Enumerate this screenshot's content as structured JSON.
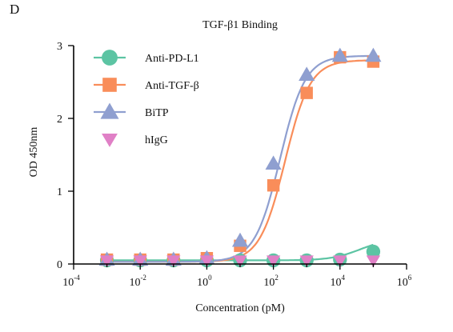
{
  "panel_label": "D",
  "chart_data": {
    "type": "scatter",
    "title": "TGF-β1 Binding",
    "xlabel": "Concentration (pM)",
    "ylabel": "OD 450nm",
    "x_scale": "log10",
    "xlim": [
      0.0001,
      1000000
    ],
    "ylim": [
      0,
      3
    ],
    "x_ticks": [
      {
        "base": "10",
        "exp": "-4"
      },
      {
        "base": "10",
        "exp": "-2"
      },
      {
        "base": "10",
        "exp": "0"
      },
      {
        "base": "10",
        "exp": "2"
      },
      {
        "base": "10",
        "exp": "4"
      },
      {
        "base": "10",
        "exp": "6"
      }
    ],
    "x_tick_values": [
      0.0001,
      0.01,
      1,
      100,
      10000,
      1000000
    ],
    "y_ticks": [
      "0",
      "1",
      "2",
      "3"
    ],
    "y_tick_values": [
      0,
      1,
      2,
      3
    ],
    "legend_position": "top-left",
    "x": [
      0.001,
      0.01,
      0.1,
      1,
      10,
      100,
      1000,
      10000,
      100000
    ],
    "series": [
      {
        "name": "Anti-PD-L1",
        "marker": "circle",
        "color": "#5cc4a3",
        "values": [
          0.05,
          0.05,
          0.05,
          0.05,
          0.05,
          0.05,
          0.05,
          0.06,
          0.17
        ],
        "fit": {
          "bottom": 0.05,
          "top": 0.35,
          "log_ec50": 4.6,
          "hill": 1.0
        }
      },
      {
        "name": "Anti-TGF-β",
        "marker": "square",
        "color": "#f98d5a",
        "values": [
          0.06,
          0.06,
          0.06,
          0.08,
          0.25,
          1.08,
          2.35,
          2.84,
          2.78
        ],
        "fit": {
          "bottom": 0.03,
          "top": 2.8,
          "log_ec50": 2.35,
          "hill": 1.15
        }
      },
      {
        "name": "BiTP",
        "marker": "triangle",
        "color": "#8f9fd0",
        "values": [
          0.06,
          0.06,
          0.06,
          0.08,
          0.32,
          1.38,
          2.6,
          2.86,
          2.86
        ],
        "fit": {
          "bottom": 0.03,
          "top": 2.86,
          "log_ec50": 2.2,
          "hill": 1.15
        }
      },
      {
        "name": "hIgG",
        "marker": "triangle-down",
        "color": "#e080c6",
        "values": [
          0.05,
          0.05,
          0.05,
          0.05,
          0.05,
          0.05,
          0.05,
          0.05,
          0.05
        ],
        "fit": null
      }
    ]
  }
}
